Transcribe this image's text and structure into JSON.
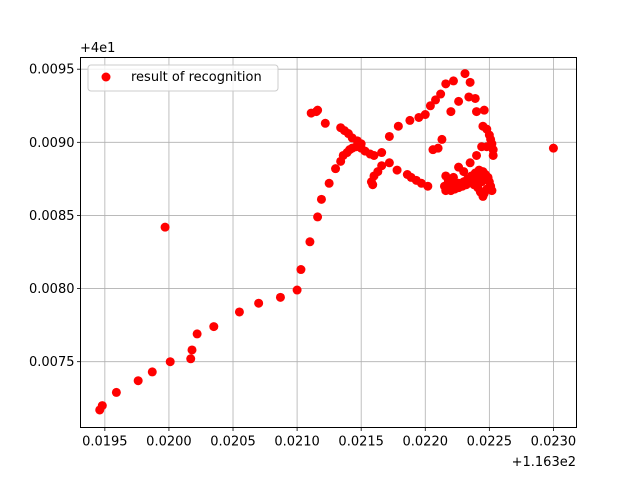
{
  "chart_data": {
    "type": "scatter",
    "title": "",
    "xlabel": "",
    "ylabel": "",
    "x_offset_label": "+1.163e2",
    "y_offset_label": "+4e1",
    "xlim": [
      0.01931,
      0.02318
    ],
    "ylim": [
      0.00705,
      0.00958
    ],
    "x_ticks": [
      0.0195,
      0.02,
      0.0205,
      0.021,
      0.0215,
      0.022,
      0.0225,
      0.023
    ],
    "x_tick_labels": [
      "0.0195",
      "0.0200",
      "0.0205",
      "0.0210",
      "0.0215",
      "0.0220",
      "0.0225",
      "0.0230"
    ],
    "y_ticks": [
      0.0075,
      0.008,
      0.0085,
      0.009,
      0.0095
    ],
    "y_tick_labels": [
      "0.0075",
      "0.0080",
      "0.0085",
      "0.0090",
      "0.0095"
    ],
    "grid": true,
    "legend_position": "top-left",
    "series": [
      {
        "name": "result of recognition",
        "color": "#ff0000",
        "points": [
          [
            0.01946,
            0.00717
          ],
          [
            0.01948,
            0.0072
          ],
          [
            0.01959,
            0.00729
          ],
          [
            0.01976,
            0.00737
          ],
          [
            0.01987,
            0.00743
          ],
          [
            0.01997,
            0.00842
          ],
          [
            0.02001,
            0.0075
          ],
          [
            0.02017,
            0.00752
          ],
          [
            0.02018,
            0.00758
          ],
          [
            0.02022,
            0.00769
          ],
          [
            0.02035,
            0.00774
          ],
          [
            0.02055,
            0.00784
          ],
          [
            0.0207,
            0.0079
          ],
          [
            0.02087,
            0.00794
          ],
          [
            0.021,
            0.00799
          ],
          [
            0.02103,
            0.00813
          ],
          [
            0.0211,
            0.00832
          ],
          [
            0.02116,
            0.00849
          ],
          [
            0.02119,
            0.00861
          ],
          [
            0.02125,
            0.00872
          ],
          [
            0.0213,
            0.00882
          ],
          [
            0.02134,
            0.00887
          ],
          [
            0.02136,
            0.00891
          ],
          [
            0.02139,
            0.00893
          ],
          [
            0.02141,
            0.00895
          ],
          [
            0.02143,
            0.00896
          ],
          [
            0.02146,
            0.00897
          ],
          [
            0.0215,
            0.00896
          ],
          [
            0.02153,
            0.00894
          ],
          [
            0.02157,
            0.00892
          ],
          [
            0.0216,
            0.00891
          ],
          [
            0.02111,
            0.0092
          ],
          [
            0.02115,
            0.00921
          ],
          [
            0.02116,
            0.00922
          ],
          [
            0.02122,
            0.00913
          ],
          [
            0.02134,
            0.0091
          ],
          [
            0.02137,
            0.00908
          ],
          [
            0.0214,
            0.00906
          ],
          [
            0.02143,
            0.00903
          ],
          [
            0.02147,
            0.00901
          ],
          [
            0.0215,
            0.00899
          ],
          [
            0.02166,
            0.00893
          ],
          [
            0.02172,
            0.00904
          ],
          [
            0.02179,
            0.00911
          ],
          [
            0.02188,
            0.00915
          ],
          [
            0.02195,
            0.00917
          ],
          [
            0.022,
            0.00919
          ],
          [
            0.02204,
            0.00925
          ],
          [
            0.02208,
            0.00929
          ],
          [
            0.02212,
            0.00933
          ],
          [
            0.02216,
            0.0094
          ],
          [
            0.02222,
            0.00942
          ],
          [
            0.02231,
            0.00947
          ],
          [
            0.02235,
            0.00941
          ],
          [
            0.02234,
            0.00931
          ],
          [
            0.02239,
            0.0093
          ],
          [
            0.02226,
            0.00928
          ],
          [
            0.0222,
            0.00921
          ],
          [
            0.0224,
            0.00921
          ],
          [
            0.02246,
            0.00922
          ],
          [
            0.02245,
            0.00911
          ],
          [
            0.02248,
            0.00909
          ],
          [
            0.0225,
            0.00905
          ],
          [
            0.02251,
            0.00902
          ],
          [
            0.02252,
            0.00899
          ],
          [
            0.02253,
            0.00895
          ],
          [
            0.02253,
            0.00891
          ],
          [
            0.02248,
            0.00897
          ],
          [
            0.02244,
            0.00897
          ],
          [
            0.0224,
            0.00891
          ],
          [
            0.02235,
            0.00886
          ],
          [
            0.0223,
            0.0088
          ],
          [
            0.02226,
            0.00883
          ],
          [
            0.02222,
            0.00876
          ],
          [
            0.02218,
            0.00874
          ],
          [
            0.02215,
            0.0087
          ],
          [
            0.02216,
            0.00867
          ],
          [
            0.02218,
            0.00869
          ],
          [
            0.02222,
            0.00871
          ],
          [
            0.02226,
            0.00872
          ],
          [
            0.0223,
            0.00873
          ],
          [
            0.02233,
            0.00875
          ],
          [
            0.02236,
            0.00877
          ],
          [
            0.02239,
            0.00879
          ],
          [
            0.02242,
            0.00881
          ],
          [
            0.02245,
            0.0088
          ],
          [
            0.02247,
            0.00878
          ],
          [
            0.02249,
            0.00876
          ],
          [
            0.0225,
            0.00873
          ],
          [
            0.02251,
            0.0087
          ],
          [
            0.02252,
            0.00867
          ],
          [
            0.02248,
            0.00868
          ],
          [
            0.02246,
            0.00865
          ],
          [
            0.02245,
            0.00863
          ],
          [
            0.02243,
            0.00866
          ],
          [
            0.02241,
            0.00869
          ],
          [
            0.02238,
            0.00871
          ],
          [
            0.02235,
            0.00873
          ],
          [
            0.02232,
            0.00871
          ],
          [
            0.02229,
            0.0087
          ],
          [
            0.02226,
            0.00869
          ],
          [
            0.02223,
            0.00868
          ],
          [
            0.0222,
            0.00867
          ],
          [
            0.02217,
            0.00868
          ],
          [
            0.02244,
            0.00873
          ],
          [
            0.02246,
            0.00875
          ],
          [
            0.0224,
            0.00875
          ],
          [
            0.02242,
            0.00877
          ],
          [
            0.02216,
            0.00877
          ],
          [
            0.02218,
            0.00873
          ],
          [
            0.02206,
            0.00895
          ],
          [
            0.0221,
            0.00896
          ],
          [
            0.02213,
            0.00902
          ],
          [
            0.02202,
            0.0087
          ],
          [
            0.02197,
            0.00872
          ],
          [
            0.02193,
            0.00874
          ],
          [
            0.02189,
            0.00876
          ],
          [
            0.02186,
            0.00878
          ],
          [
            0.02178,
            0.00881
          ],
          [
            0.02172,
            0.00886
          ],
          [
            0.02166,
            0.00884
          ],
          [
            0.02163,
            0.0088
          ],
          [
            0.0216,
            0.00877
          ],
          [
            0.02158,
            0.00873
          ],
          [
            0.02159,
            0.00871
          ],
          [
            0.023,
            0.00896
          ]
        ]
      }
    ]
  }
}
